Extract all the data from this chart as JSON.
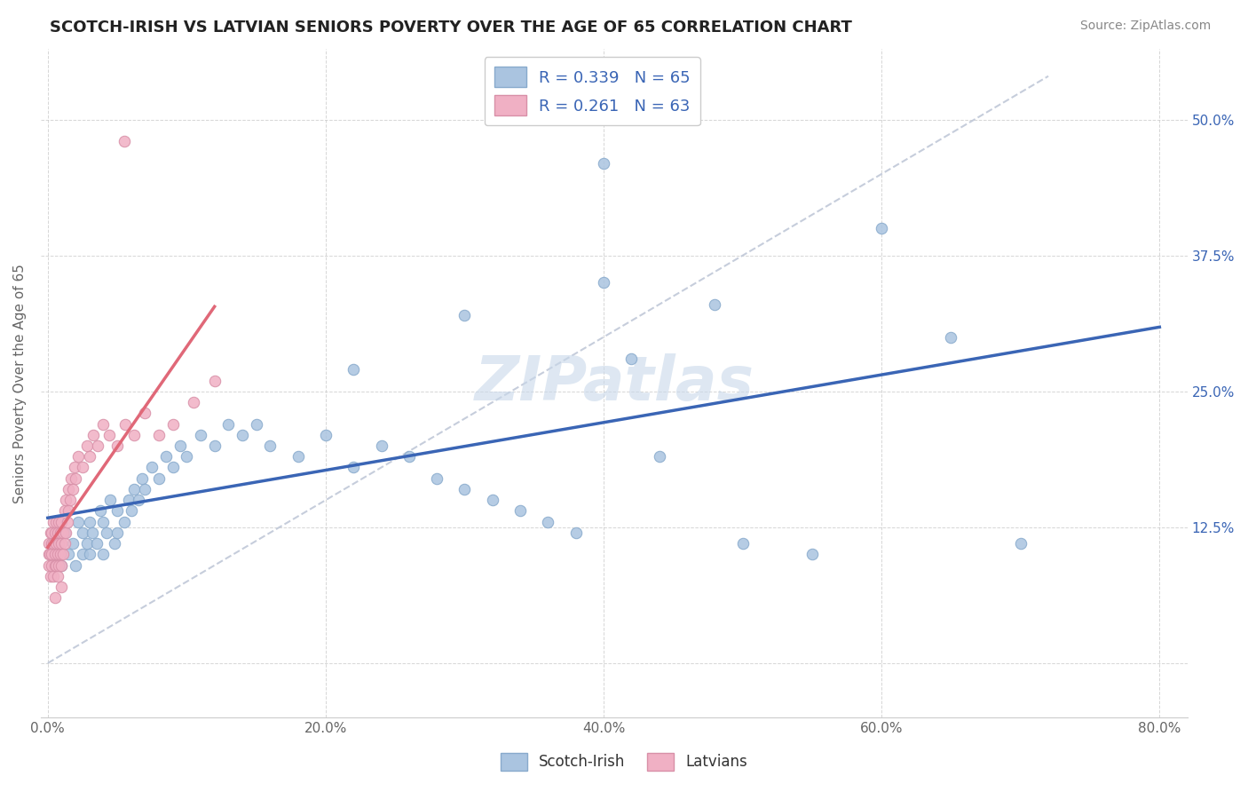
{
  "title": "SCOTCH-IRISH VS LATVIAN SENIORS POVERTY OVER THE AGE OF 65 CORRELATION CHART",
  "source": "Source: ZipAtlas.com",
  "ylabel": "Seniors Poverty Over the Age of 65",
  "xlim": [
    -0.005,
    0.82
  ],
  "ylim": [
    -0.05,
    0.565
  ],
  "xticks": [
    0.0,
    0.2,
    0.4,
    0.6,
    0.8
  ],
  "xtick_labels": [
    "0.0%",
    "20.0%",
    "40.0%",
    "60.0%",
    "80.0%"
  ],
  "yticks": [
    0.0,
    0.125,
    0.25,
    0.375,
    0.5
  ],
  "ytick_labels": [
    "",
    "12.5%",
    "25.0%",
    "37.5%",
    "50.0%"
  ],
  "scotch_irish_R": 0.339,
  "scotch_irish_N": 65,
  "latvian_R": 0.261,
  "latvian_N": 63,
  "scotch_irish_color": "#aac4e0",
  "scotch_irish_edge": "#88aacc",
  "latvian_color": "#f0b0c4",
  "latvian_edge": "#d890a8",
  "scotch_irish_line_color": "#3a65b5",
  "latvian_line_color": "#e06878",
  "ref_line_color": "#c0c8d8",
  "watermark": "ZIPatlas",
  "watermark_color": "#c8d8ea",
  "scotch_irish_x": [
    0.005,
    0.008,
    0.01,
    0.012,
    0.015,
    0.018,
    0.02,
    0.022,
    0.025,
    0.025,
    0.028,
    0.03,
    0.03,
    0.032,
    0.035,
    0.038,
    0.04,
    0.04,
    0.042,
    0.045,
    0.048,
    0.05,
    0.05,
    0.055,
    0.058,
    0.06,
    0.062,
    0.065,
    0.068,
    0.07,
    0.075,
    0.08,
    0.085,
    0.09,
    0.095,
    0.1,
    0.11,
    0.12,
    0.13,
    0.14,
    0.15,
    0.16,
    0.18,
    0.2,
    0.22,
    0.24,
    0.26,
    0.28,
    0.3,
    0.32,
    0.34,
    0.36,
    0.38,
    0.4,
    0.42,
    0.44,
    0.5,
    0.55,
    0.6,
    0.65,
    0.4,
    0.3,
    0.22,
    0.7,
    0.48
  ],
  "scotch_irish_y": [
    0.1,
    0.11,
    0.09,
    0.12,
    0.1,
    0.11,
    0.09,
    0.13,
    0.1,
    0.12,
    0.11,
    0.1,
    0.13,
    0.12,
    0.11,
    0.14,
    0.1,
    0.13,
    0.12,
    0.15,
    0.11,
    0.12,
    0.14,
    0.13,
    0.15,
    0.14,
    0.16,
    0.15,
    0.17,
    0.16,
    0.18,
    0.17,
    0.19,
    0.18,
    0.2,
    0.19,
    0.21,
    0.2,
    0.22,
    0.21,
    0.22,
    0.2,
    0.19,
    0.21,
    0.18,
    0.2,
    0.19,
    0.17,
    0.16,
    0.15,
    0.14,
    0.13,
    0.12,
    0.46,
    0.28,
    0.19,
    0.11,
    0.1,
    0.4,
    0.3,
    0.35,
    0.32,
    0.27,
    0.11,
    0.33
  ],
  "latvian_x": [
    0.0005,
    0.001,
    0.001,
    0.0015,
    0.002,
    0.002,
    0.0025,
    0.003,
    0.003,
    0.003,
    0.004,
    0.004,
    0.004,
    0.005,
    0.005,
    0.005,
    0.006,
    0.006,
    0.006,
    0.007,
    0.007,
    0.007,
    0.008,
    0.008,
    0.008,
    0.009,
    0.009,
    0.01,
    0.01,
    0.01,
    0.011,
    0.011,
    0.012,
    0.012,
    0.013,
    0.013,
    0.014,
    0.015,
    0.015,
    0.016,
    0.017,
    0.018,
    0.019,
    0.02,
    0.022,
    0.025,
    0.028,
    0.03,
    0.033,
    0.036,
    0.04,
    0.044,
    0.05,
    0.056,
    0.062,
    0.07,
    0.08,
    0.09,
    0.105,
    0.12,
    0.055,
    0.01,
    0.005
  ],
  "latvian_y": [
    0.1,
    0.09,
    0.11,
    0.1,
    0.12,
    0.08,
    0.11,
    0.09,
    0.12,
    0.1,
    0.11,
    0.08,
    0.13,
    0.09,
    0.12,
    0.1,
    0.11,
    0.09,
    0.13,
    0.1,
    0.12,
    0.08,
    0.11,
    0.13,
    0.09,
    0.1,
    0.12,
    0.11,
    0.09,
    0.13,
    0.1,
    0.12,
    0.11,
    0.14,
    0.12,
    0.15,
    0.13,
    0.14,
    0.16,
    0.15,
    0.17,
    0.16,
    0.18,
    0.17,
    0.19,
    0.18,
    0.2,
    0.19,
    0.21,
    0.2,
    0.22,
    0.21,
    0.2,
    0.22,
    0.21,
    0.23,
    0.21,
    0.22,
    0.24,
    0.26,
    0.48,
    0.07,
    0.06
  ]
}
